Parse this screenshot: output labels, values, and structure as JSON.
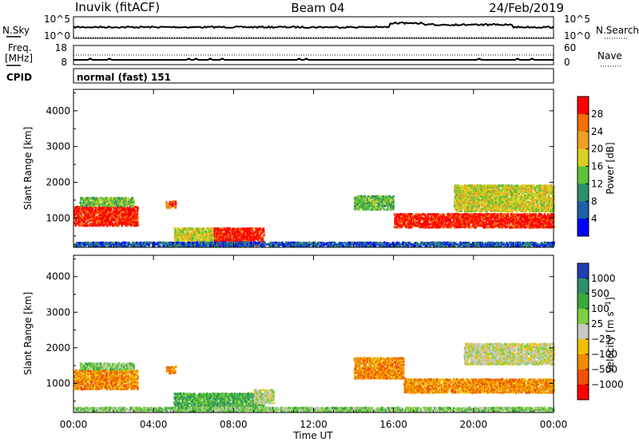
{
  "header": {
    "station": "Inuvik (fitACF)",
    "beam": "Beam 04",
    "date": "24/Feb/2019"
  },
  "nsky_panel": {
    "left_label": "N.Sky",
    "left_ticks": [
      "10^5",
      "10^0"
    ],
    "right_ticks": [
      "10^5",
      "10^0"
    ],
    "right_label": "N.Search"
  },
  "freq_panel": {
    "left_label_line1": "Freq.",
    "left_label_line2": "[MHz]",
    "left_ticks": [
      "18",
      "8"
    ],
    "right_ticks": [
      "60",
      "0"
    ],
    "right_label": "Nave"
  },
  "cpid": {
    "label": "CPID",
    "value": "normal (fast) 151"
  },
  "chart_data": [
    {
      "type": "heatmap",
      "parameter": "Power",
      "ylabel": "Slant Range [km]",
      "ylim": [
        180,
        4600
      ],
      "y_ticks": [
        "1000",
        "2000",
        "3000",
        "4000"
      ],
      "y_tick_values": [
        1000,
        2000,
        3000,
        4000
      ],
      "x_ticks": [
        "00:00",
        "04:00",
        "08:00",
        "12:00",
        "16:00",
        "20:00",
        "00:00"
      ],
      "xlim_hours": [
        0,
        24
      ],
      "colorbar": {
        "label": "Power [dB]",
        "ticks": [
          "4",
          "8",
          "12",
          "16",
          "20",
          "24",
          "28"
        ],
        "colors": [
          "#0000ff",
          "#1f5fa8",
          "#2f8f6a",
          "#5cc23a",
          "#d8d020",
          "#f0a020",
          "#f07000",
          "#ff0000"
        ]
      },
      "regions": [
        {
          "t0": 0.0,
          "t1": 3.2,
          "r0": 750,
          "r1": 1300,
          "level": 7
        },
        {
          "t0": 0.3,
          "t1": 3.0,
          "r0": 1300,
          "r1": 1550,
          "level": 3
        },
        {
          "t0": 4.6,
          "t1": 5.1,
          "r0": 1250,
          "r1": 1450,
          "level": 6
        },
        {
          "t0": 5.0,
          "t1": 7.5,
          "r0": 300,
          "r1": 700,
          "level": 4
        },
        {
          "t0": 7.0,
          "t1": 9.5,
          "r0": 200,
          "r1": 700,
          "level": 7
        },
        {
          "t0": 14.0,
          "t1": 16.0,
          "r0": 1200,
          "r1": 1600,
          "level": 3
        },
        {
          "t0": 16.0,
          "t1": 24.0,
          "r0": 700,
          "r1": 1100,
          "level": 7
        },
        {
          "t0": 19.0,
          "t1": 24.0,
          "r0": 1150,
          "r1": 1900,
          "level": 4
        },
        {
          "t0": 0.0,
          "t1": 24.0,
          "r0": 180,
          "r1": 300,
          "level": 1
        }
      ]
    },
    {
      "type": "heatmap",
      "parameter": "Velocity",
      "ylabel": "Slant Range [km]",
      "ylim": [
        180,
        4600
      ],
      "y_ticks": [
        "1000",
        "2000",
        "3000",
        "4000"
      ],
      "y_tick_values": [
        1000,
        2000,
        3000,
        4000
      ],
      "x_ticks": [
        "00:00",
        "04:00",
        "08:00",
        "12:00",
        "16:00",
        "20:00",
        "00:00"
      ],
      "xlim_hours": [
        0,
        24
      ],
      "xlabel": "Time UT",
      "colorbar": {
        "label": "Velocity [m s-1]",
        "ticks": [
          "1000",
          "500",
          "100",
          "25",
          "−25",
          "−100",
          "−500",
          "−1000"
        ],
        "colors": [
          "#1f3fb0",
          "#2f8f6a",
          "#3aaa3a",
          "#7ed040",
          "#c8c8c0",
          "#f0c000",
          "#f08c00",
          "#f05000",
          "#ff0000"
        ]
      },
      "regions": [
        {
          "t0": 0.0,
          "t1": 3.2,
          "r0": 800,
          "r1": 1350,
          "level": 6
        },
        {
          "t0": 0.3,
          "t1": 3.0,
          "r0": 1350,
          "r1": 1550,
          "level": 3
        },
        {
          "t0": 4.6,
          "t1": 5.1,
          "r0": 1250,
          "r1": 1450,
          "level": 6
        },
        {
          "t0": 5.0,
          "t1": 9.5,
          "r0": 200,
          "r1": 700,
          "level": 2
        },
        {
          "t0": 9.0,
          "t1": 10.0,
          "r0": 400,
          "r1": 800,
          "level": 4
        },
        {
          "t0": 14.0,
          "t1": 16.5,
          "r0": 1100,
          "r1": 1700,
          "level": 6
        },
        {
          "t0": 16.5,
          "t1": 24.0,
          "r0": 700,
          "r1": 1100,
          "level": 6
        },
        {
          "t0": 19.5,
          "t1": 24.0,
          "r0": 1500,
          "r1": 2100,
          "level": 4
        },
        {
          "t0": 0.0,
          "t1": 24.0,
          "r0": 180,
          "r1": 300,
          "level": 3
        }
      ]
    }
  ]
}
